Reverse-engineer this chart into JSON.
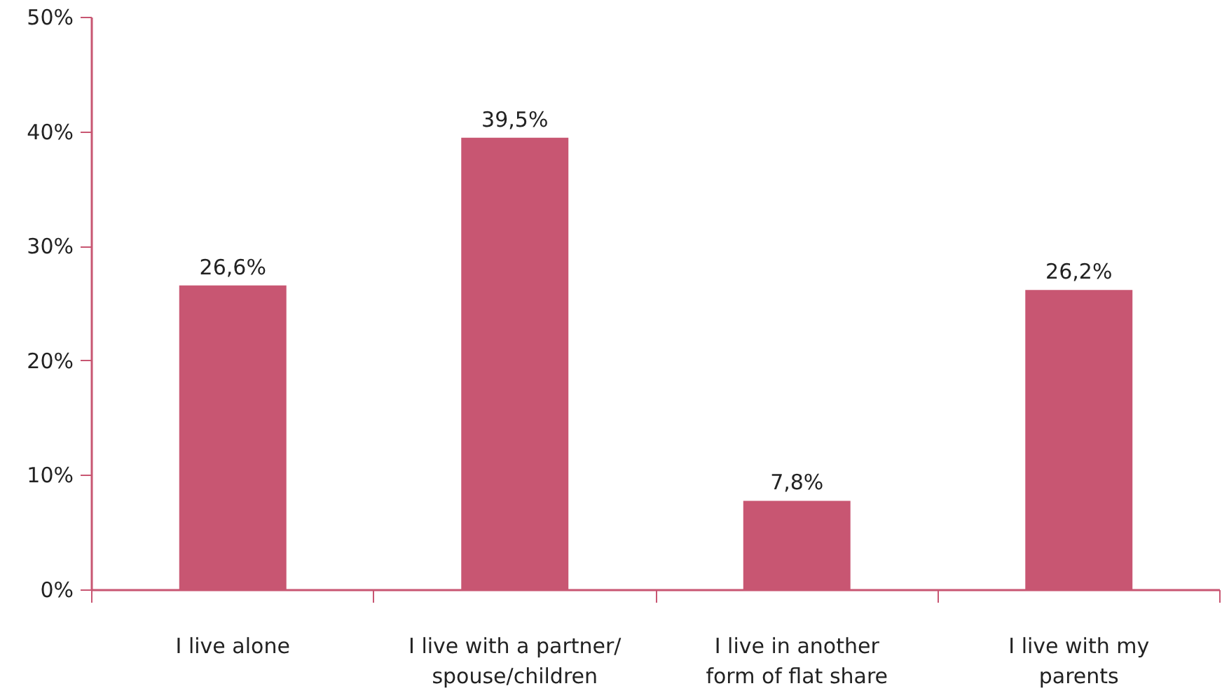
{
  "chart_data": {
    "type": "bar",
    "categories": [
      "I live alone",
      "I live with a partner/\nspouse/children",
      "I live in another\nform of flat share",
      "I live with my\nparents"
    ],
    "values": [
      26.6,
      39.5,
      7.8,
      26.2
    ],
    "value_labels": [
      "26,6%",
      "39,5%",
      "7,8%",
      "26,2%"
    ],
    "color": "#c85672",
    "ylim": [
      0,
      50
    ],
    "yticks": [
      {
        "value": 0,
        "label": "0%"
      },
      {
        "value": 10,
        "label": "10%"
      },
      {
        "value": 20,
        "label": "20%"
      },
      {
        "value": 30,
        "label": "30%"
      },
      {
        "value": 40,
        "label": "40%"
      },
      {
        "value": 50,
        "label": "50%"
      }
    ],
    "grid": false
  }
}
